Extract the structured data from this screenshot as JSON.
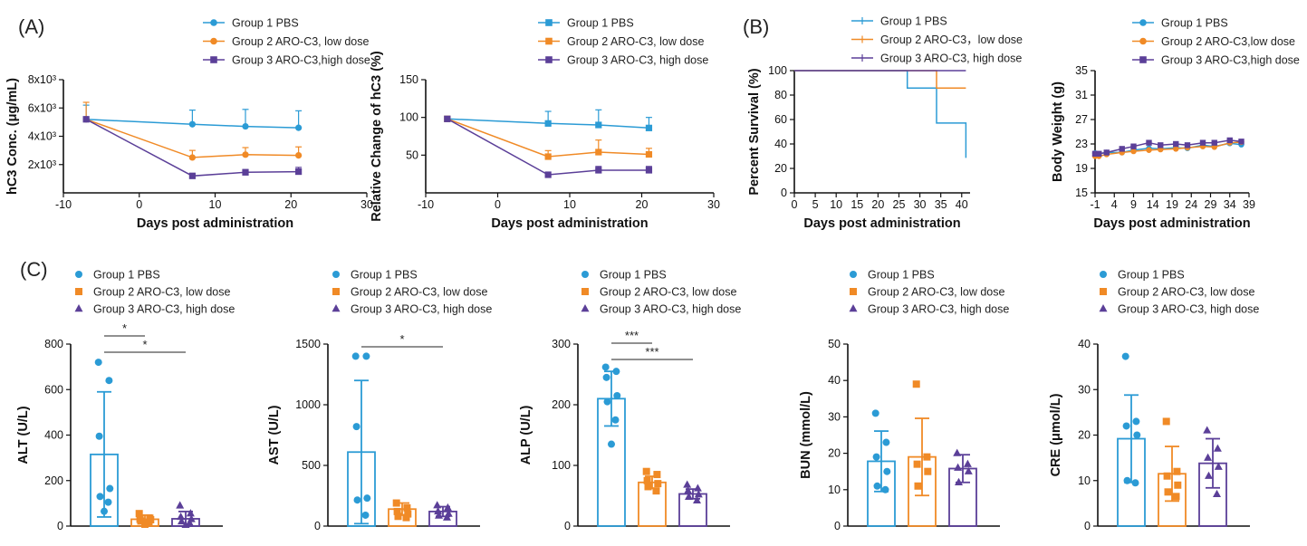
{
  "colors": {
    "g1": "#2b9bd5",
    "g2": "#f08a26",
    "g3": "#5b3f98",
    "axis": "#111111"
  },
  "panel_labels": [
    "(A)",
    "(B)",
    "(C)"
  ],
  "chart_data": [
    {
      "id": "hc3_conc",
      "type": "line",
      "title": "",
      "xlabel": "Days post administration",
      "ylabel": "hC3 Conc. (μg/mL)",
      "xlim": [
        -10,
        30
      ],
      "ylim": [
        0,
        8000
      ],
      "xticks": [
        -10,
        0,
        10,
        20,
        30
      ],
      "xtick_labels": [
        "-10",
        "0",
        "10",
        "20",
        "30"
      ],
      "yticks": [
        2000,
        4000,
        6000,
        8000
      ],
      "ytick_labels": [
        "2x10³",
        "4x10³",
        "6x10³",
        "8x10³"
      ],
      "legend": [
        "Group 1 PBS",
        "Group 2 ARO-C3, low dose",
        "Group 3 ARO-C3,high dose"
      ],
      "marker": "circle-square",
      "series": [
        {
          "name": "Group 1 PBS",
          "x": [
            -7,
            7,
            14,
            21
          ],
          "y": [
            5200,
            4850,
            4700,
            4600
          ],
          "err": [
            1000,
            1000,
            1200,
            1200
          ]
        },
        {
          "name": "Group 2 ARO-C3, low dose",
          "x": [
            -7,
            7,
            14,
            21
          ],
          "y": [
            5200,
            2500,
            2700,
            2650
          ],
          "err": [
            1200,
            500,
            500,
            600
          ]
        },
        {
          "name": "Group 3 ARO-C3,high dose",
          "x": [
            -7,
            7,
            14,
            21
          ],
          "y": [
            5200,
            1200,
            1450,
            1500
          ],
          "err": [
            0,
            0,
            200,
            300
          ]
        }
      ]
    },
    {
      "id": "rel_change",
      "type": "line",
      "title": "",
      "xlabel": "Days post administration",
      "ylabel": "Relative Change of hC3 (%)",
      "xlim": [
        -10,
        30
      ],
      "ylim": [
        0,
        150
      ],
      "xticks": [
        -10,
        0,
        10,
        20,
        30
      ],
      "xtick_labels": [
        "-10",
        "0",
        "10",
        "20",
        "30"
      ],
      "yticks": [
        50,
        100,
        150
      ],
      "ytick_labels": [
        "50",
        "100",
        "150"
      ],
      "legend": [
        "Group 1 PBS",
        "Group 2 ARO-C3, low dose",
        "Group 3 ARO-C3, high dose"
      ],
      "marker": "square",
      "series": [
        {
          "name": "Group 1 PBS",
          "x": [
            -7,
            7,
            14,
            21
          ],
          "y": [
            98,
            92,
            90,
            86
          ],
          "err": [
            0,
            16,
            20,
            14
          ]
        },
        {
          "name": "Group 2 ARO-C3, low dose",
          "x": [
            -7,
            7,
            14,
            21
          ],
          "y": [
            98,
            48,
            54,
            51
          ],
          "err": [
            0,
            8,
            16,
            8
          ]
        },
        {
          "name": "Group 3 ARO-C3, high dose",
          "x": [
            -7,
            7,
            14,
            21
          ],
          "y": [
            98,
            24,
            30,
            30
          ],
          "err": [
            0,
            0,
            5,
            5
          ]
        }
      ]
    },
    {
      "id": "survival",
      "type": "line",
      "subtype": "step",
      "title": "",
      "xlabel": "Days post administration",
      "ylabel": "Percent Survival (%)",
      "xlim": [
        0,
        42
      ],
      "ylim": [
        0,
        100
      ],
      "xticks": [
        0,
        5,
        10,
        15,
        20,
        25,
        30,
        35,
        40
      ],
      "xtick_labels": [
        "0",
        "5",
        "10",
        "15",
        "20",
        "25",
        "30",
        "35",
        "40"
      ],
      "yticks": [
        0,
        20,
        40,
        60,
        80,
        100
      ],
      "ytick_labels": [
        "0",
        "20",
        "40",
        "60",
        "80",
        "100"
      ],
      "legend": [
        "Group 1 PBS",
        "Group 2 ARO-C3，low dose",
        "Group 3 ARO-C3, high dose"
      ],
      "series": [
        {
          "name": "Group 1 PBS",
          "x": [
            0,
            27,
            27,
            34,
            34,
            41,
            41
          ],
          "y": [
            100,
            100,
            85.7,
            85.7,
            57.1,
            57.1,
            28.6
          ]
        },
        {
          "name": "Group 2 ARO-C3，low dose",
          "x": [
            0,
            34,
            34,
            41
          ],
          "y": [
            100,
            100,
            85.7,
            85.7
          ]
        },
        {
          "name": "Group 3 ARO-C3, high dose",
          "x": [
            0,
            41
          ],
          "y": [
            100,
            100
          ]
        }
      ]
    },
    {
      "id": "body_weight",
      "type": "line",
      "title": "",
      "xlabel": "Days post administration",
      "ylabel": "Body Weight (g)",
      "xlim": [
        -1,
        39
      ],
      "ylim": [
        15,
        35
      ],
      "xticks": [
        -1,
        4,
        9,
        14,
        19,
        24,
        29,
        34,
        39
      ],
      "xtick_labels": [
        "-1",
        "4",
        "9",
        "14",
        "19",
        "24",
        "29",
        "34",
        "39"
      ],
      "yticks": [
        15,
        19,
        23,
        27,
        31,
        35
      ],
      "ytick_labels": [
        "15",
        "19",
        "23",
        "27",
        "31",
        "35"
      ],
      "legend": [
        "Group 1 PBS",
        "Group 2 ARO-C3,low dose",
        "Group 3 ARO-C3,high dose"
      ],
      "series": [
        {
          "name": "Group 1 PBS",
          "x": [
            -1,
            0,
            2,
            6,
            9,
            13,
            16,
            20,
            23,
            27,
            30,
            34,
            37
          ],
          "y": [
            21.5,
            21.4,
            21.6,
            21.6,
            22.0,
            22.3,
            22.2,
            22.4,
            22.3,
            22.8,
            22.6,
            23.1,
            22.9
          ]
        },
        {
          "name": "Group 2 ARO-C3,low dose",
          "x": [
            -1,
            0,
            2,
            6,
            9,
            13,
            16,
            20,
            23,
            27,
            30,
            34,
            37
          ],
          "y": [
            21.0,
            21.0,
            21.3,
            21.6,
            21.8,
            22.0,
            22.1,
            22.2,
            22.4,
            22.6,
            22.5,
            23.2,
            23.3
          ]
        },
        {
          "name": "Group 3 ARO-C3,high dose",
          "x": [
            -1,
            0,
            2,
            6,
            9,
            13,
            16,
            20,
            23,
            27,
            30,
            34,
            37
          ],
          "y": [
            21.4,
            21.4,
            21.6,
            22.2,
            22.6,
            23.2,
            22.8,
            23.0,
            22.8,
            23.2,
            23.2,
            23.6,
            23.4
          ]
        }
      ]
    },
    {
      "id": "alt",
      "type": "bar",
      "title": "",
      "ylabel": "ALT (U/L)",
      "ylim": [
        0,
        800
      ],
      "yticks": [
        0,
        200,
        400,
        600,
        800
      ],
      "ytick_labels": [
        "0",
        "200",
        "400",
        "600",
        "800"
      ],
      "legend": [
        "Group 1 PBS",
        "Group 2 ARO-C3, low dose",
        "Group 3 ARO-C3, high dose"
      ],
      "categories": [
        "Group 1 PBS",
        "Group 2 ARO-C3, low dose",
        "Group 3 ARO-C3, high dose"
      ],
      "values": [
        315,
        30,
        32
      ],
      "err": [
        275,
        18,
        32
      ],
      "points": [
        [
          720,
          640,
          395,
          165,
          130,
          105,
          65
        ],
        [
          55,
          35,
          30,
          28,
          22,
          15,
          8
        ],
        [
          90,
          55,
          40,
          30,
          20,
          12,
          5
        ]
      ],
      "significance": [
        {
          "from": 0,
          "to": 1,
          "label": "*"
        },
        {
          "from": 0,
          "to": 2,
          "label": "*"
        }
      ]
    },
    {
      "id": "ast",
      "type": "bar",
      "title": "",
      "ylabel": "AST (U/L)",
      "ylim": [
        0,
        1500
      ],
      "yticks": [
        0,
        500,
        1000,
        1500
      ],
      "ytick_labels": [
        "0",
        "500",
        "1000",
        "1500"
      ],
      "legend": [
        "Group 1 PBS",
        "Group 2 ARO-C3, low dose",
        "Group 3 ARO-C3, high dose"
      ],
      "categories": [
        "Group 1 PBS",
        "Group 2 ARO-C3, low dose",
        "Group 3 ARO-C3, high dose"
      ],
      "values": [
        610,
        140,
        120
      ],
      "err": [
        590,
        50,
        40
      ],
      "points": [
        [
          1400,
          1400,
          820,
          230,
          215,
          90
        ],
        [
          190,
          150,
          120,
          100,
          80,
          70
        ],
        [
          170,
          150,
          120,
          100,
          85,
          70
        ]
      ],
      "significance": [
        {
          "from": 0,
          "to": 2,
          "label": "*"
        }
      ]
    },
    {
      "id": "alp",
      "type": "bar",
      "title": "",
      "ylabel": "ALP (U/L)",
      "ylim": [
        0,
        300
      ],
      "yticks": [
        0,
        100,
        200,
        300
      ],
      "ytick_labels": [
        "0",
        "100",
        "200",
        "300"
      ],
      "legend": [
        "Group 1 PBS",
        "Group 2 ARO-C3, low dose",
        "Group 3 ARO-C3, high dose"
      ],
      "categories": [
        "Group 1 PBS",
        "Group 2 ARO-C3, low dose",
        "Group 3 ARO-C3, high dose"
      ],
      "values": [
        210,
        72,
        53
      ],
      "err": [
        45,
        10,
        8
      ],
      "points": [
        [
          262,
          255,
          245,
          215,
          205,
          175,
          135
        ],
        [
          90,
          85,
          75,
          70,
          65,
          58
        ],
        [
          68,
          62,
          58,
          52,
          48,
          42
        ]
      ],
      "significance": [
        {
          "from": 0,
          "to": 1,
          "label": "***"
        },
        {
          "from": 0,
          "to": 2,
          "label": "***"
        }
      ]
    },
    {
      "id": "bun",
      "type": "bar",
      "title": "",
      "ylabel": "BUN (mmol/L)",
      "ylim": [
        0,
        50
      ],
      "yticks": [
        0,
        10,
        20,
        30,
        40,
        50
      ],
      "ytick_labels": [
        "0",
        "10",
        "20",
        "30",
        "40",
        "50"
      ],
      "legend": [
        "Group 1 PBS",
        "Group 2 ARO-C3, low dose",
        "Group 3 ARO-C3, high dose"
      ],
      "categories": [
        "Group 1 PBS",
        "Group 2 ARO-C3, low dose",
        "Group 3 ARO-C3, high dose"
      ],
      "values": [
        17.8,
        19.0,
        15.8
      ],
      "err": [
        8.3,
        10.6,
        3.8
      ],
      "points": [
        [
          31,
          23,
          19,
          15,
          11,
          10
        ],
        [
          39,
          19,
          17,
          15,
          11
        ],
        [
          20,
          17,
          16,
          15,
          12
        ]
      ],
      "significance": []
    },
    {
      "id": "cre",
      "type": "bar",
      "title": "",
      "ylabel": "CRE (μmol/L)",
      "ylim": [
        0,
        40
      ],
      "yticks": [
        0,
        10,
        20,
        30,
        40
      ],
      "ytick_labels": [
        "0",
        "10",
        "20",
        "30",
        "40"
      ],
      "legend": [
        "Group 1 PBS",
        "Group 2 ARO-C3, low dose",
        "Group 3 ARO-C3, high dose"
      ],
      "categories": [
        "Group 1 PBS",
        "Group 2 ARO-C3, low dose",
        "Group 3 ARO-C3, high dose"
      ],
      "values": [
        19.2,
        11.5,
        13.8
      ],
      "err": [
        9.6,
        6.0,
        5.4
      ],
      "points": [
        [
          37.3,
          23,
          22,
          20,
          10,
          9.5
        ],
        [
          23,
          12,
          11,
          9,
          7.5,
          6.5
        ],
        [
          21,
          17,
          15,
          13,
          11,
          7
        ]
      ],
      "significance": []
    }
  ]
}
